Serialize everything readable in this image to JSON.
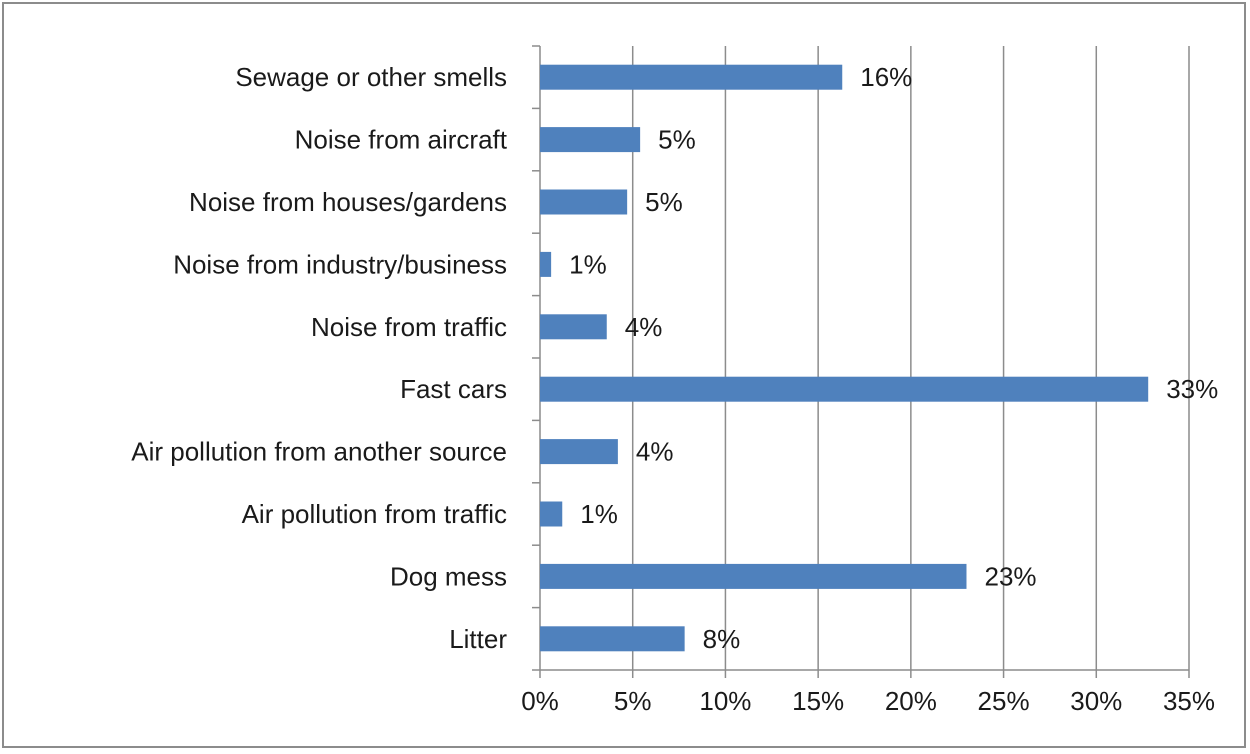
{
  "chart_data": {
    "type": "bar",
    "orientation": "horizontal",
    "categories": [
      "Sewage or other smells",
      "Noise from aircraft",
      "Noise from houses/gardens",
      "Noise from industry/business",
      "Noise from traffic",
      "Fast cars",
      "Air pollution from another source",
      "Air pollution from traffic",
      "Dog mess",
      "Litter"
    ],
    "values": [
      16.3,
      5.4,
      4.7,
      0.6,
      3.6,
      32.8,
      4.2,
      1.2,
      23.0,
      7.8
    ],
    "data_labels": [
      "16%",
      "5%",
      "5%",
      "1%",
      "4%",
      "33%",
      "4%",
      "1%",
      "23%",
      "8%"
    ],
    "x_ticks": [
      0,
      5,
      10,
      15,
      20,
      25,
      30,
      35
    ],
    "x_tick_labels": [
      "0%",
      "5%",
      "10%",
      "15%",
      "20%",
      "25%",
      "30%",
      "35%"
    ],
    "xlim": [
      0,
      35
    ],
    "title": "",
    "xlabel": "",
    "ylabel": "",
    "grid": "vertical",
    "legend": "none",
    "bar_color": "#4f81bd",
    "gridline_color": "#8c8c8c"
  }
}
